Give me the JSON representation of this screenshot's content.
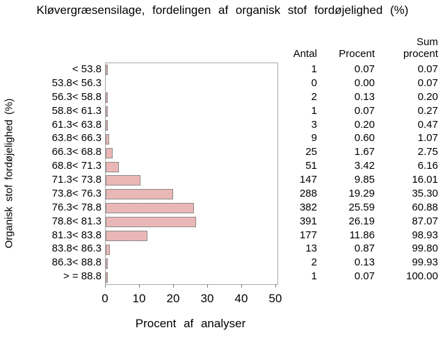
{
  "colors": {
    "background": "#ffffff",
    "text": "#000000",
    "plot_border": "#a8a8a8",
    "bar_fill": "#f9dcdc",
    "bar_dots": "#e2a4a4",
    "bar_border": "#8f8a8a"
  },
  "chart_data": {
    "type": "bar",
    "orientation": "horizontal",
    "title": "Kløvergræsensilage, fordelingen af organisk stof fordøjelighed (%)",
    "xlabel": "Procent af analyser",
    "ylabel": "Organisk stof fordøjelighed (%)",
    "xlim": [
      0,
      50
    ],
    "xticks": [
      0,
      10,
      20,
      30,
      40,
      50
    ],
    "grid": false,
    "legend": "none",
    "bar_series": "Procent",
    "categories": [
      "< 53.8",
      "53.8< 56.3",
      "56.3< 58.8",
      "58.8< 61.3",
      "61.3< 63.8",
      "63.8< 66.3",
      "66.3< 68.8",
      "68.8< 71.3",
      "71.3< 73.8",
      "73.8< 76.3",
      "76.3< 78.8",
      "78.8< 81.3",
      "81.3< 83.8",
      "83.8< 86.3",
      "86.3< 88.8",
      "> = 88.8"
    ],
    "series": [
      {
        "name": "Antal",
        "values": [
          1,
          0,
          2,
          1,
          3,
          9,
          25,
          51,
          147,
          288,
          382,
          391,
          177,
          13,
          2,
          1
        ]
      },
      {
        "name": "Procent",
        "values": [
          0.07,
          0.0,
          0.13,
          0.07,
          0.2,
          0.6,
          1.67,
          3.42,
          9.85,
          19.29,
          25.59,
          26.19,
          11.86,
          0.87,
          0.13,
          0.07
        ]
      },
      {
        "name": "Sum procent",
        "values": [
          0.07,
          0.07,
          0.2,
          0.27,
          0.47,
          1.07,
          2.75,
          6.16,
          16.01,
          35.3,
          60.88,
          87.07,
          98.93,
          99.8,
          99.93,
          100.0
        ]
      }
    ],
    "table": {
      "col1": "Antal",
      "col2": "Procent",
      "col3_line1": "Sum",
      "col3_line2": "procent"
    }
  }
}
